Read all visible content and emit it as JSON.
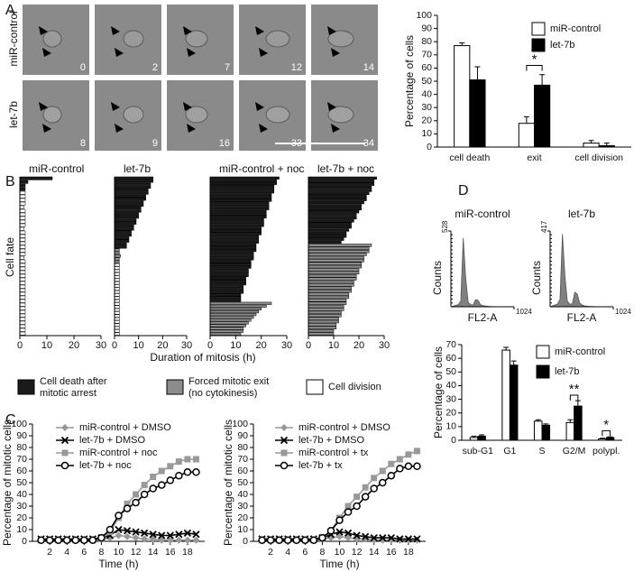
{
  "panel_labels": [
    "A",
    "B",
    "C",
    "D"
  ],
  "panel_a_images": {
    "rows": [
      {
        "label": "miR-control",
        "frames": [
          0,
          2,
          7,
          12,
          14
        ]
      },
      {
        "label": "let-7b",
        "frames": [
          8,
          9,
          16,
          33,
          34
        ]
      }
    ]
  },
  "panel_b": {
    "xlabel": "Duration of mitosis (h)",
    "ylabel": "Cell fate"
  },
  "fate_legend": [
    {
      "lines": [
        "Cell death after",
        "mitotic arrest"
      ],
      "color": "#1a1a1a"
    },
    {
      "lines": [
        "Forced mitotic exit",
        "(no cytokinesis)"
      ],
      "color": "#8c8c8c"
    },
    {
      "lines": [
        "Cell division"
      ],
      "color": "#ffffff"
    }
  ],
  "chart_data": [
    {
      "type": "bar",
      "ylabel": "Percentage of cells",
      "categories": [
        "cell death",
        "exit",
        "cell division"
      ],
      "ylim": [
        0,
        100
      ],
      "yticks": [
        0,
        10,
        20,
        30,
        40,
        50,
        60,
        70,
        80,
        90,
        100
      ],
      "series": [
        {
          "name": "miR-control",
          "color": "#ffffff",
          "values": [
            77,
            18,
            3
          ],
          "errors": [
            2,
            5,
            2
          ]
        },
        {
          "name": "let-7b",
          "color": "#000000",
          "values": [
            51,
            47,
            1
          ],
          "errors": [
            10,
            8,
            2
          ]
        }
      ],
      "annotations": [
        "*"
      ]
    },
    {
      "type": "fate",
      "title": "miR-control",
      "xlim": [
        0,
        30
      ],
      "xticks": [
        0,
        10,
        20,
        30
      ],
      "series": [
        {
          "color": "#1a1a1a",
          "values": [
            12,
            3,
            2,
            2
          ]
        },
        {
          "color": "#8c8c8c",
          "values": []
        },
        {
          "color": "#ffffff",
          "values": [
            2,
            2,
            2,
            2,
            1.5,
            2,
            2,
            2,
            2,
            2,
            1.5,
            2,
            2,
            2,
            2,
            2,
            2,
            2,
            1.5,
            2,
            2,
            2,
            2,
            2,
            2,
            2,
            2,
            2,
            2,
            2,
            2,
            2,
            2,
            2,
            2,
            2,
            2,
            2,
            2,
            2
          ]
        }
      ]
    },
    {
      "type": "fate",
      "title": "let-7b",
      "xlim": [
        0,
        30
      ],
      "xticks": [
        0,
        10,
        20,
        30
      ],
      "series": [
        {
          "color": "#1a1a1a",
          "values": [
            16,
            16,
            15,
            15,
            14,
            14,
            13,
            13,
            12,
            12,
            11,
            11,
            10,
            10,
            9,
            9,
            8,
            8,
            7,
            7,
            6,
            6,
            5,
            5
          ]
        },
        {
          "color": "#8c8c8c",
          "values": [
            2,
            2,
            2.5,
            2,
            2
          ]
        },
        {
          "color": "#ffffff",
          "values": [
            2,
            2,
            2,
            2,
            2,
            2,
            2,
            2,
            2,
            2,
            2,
            2,
            2,
            2,
            2,
            2,
            2,
            2,
            2,
            2,
            2,
            2,
            2,
            2
          ]
        }
      ]
    },
    {
      "type": "fate",
      "title": "miR-control + noc",
      "xlim": [
        0,
        30
      ],
      "xticks": [
        0,
        10,
        20,
        30
      ],
      "series": [
        {
          "color": "#1a1a1a",
          "values": [
            27,
            26,
            26,
            25,
            25,
            25,
            24,
            24,
            24,
            23,
            23,
            23,
            22,
            22,
            22,
            21,
            21,
            21,
            20,
            20,
            20,
            19,
            19,
            19,
            18,
            18,
            18,
            17,
            17,
            17,
            16,
            16,
            16,
            15,
            15,
            15,
            14,
            14,
            14,
            13,
            13,
            13,
            12,
            12,
            12
          ]
        },
        {
          "color": "#8c8c8c",
          "values": [
            24,
            22,
            20,
            19,
            18,
            17,
            16,
            15,
            14,
            13,
            13,
            12
          ]
        },
        {
          "color": "#ffffff",
          "values": []
        }
      ]
    },
    {
      "type": "fate",
      "title": "let-7b + noc",
      "xlim": [
        0,
        30
      ],
      "xticks": [
        0,
        10,
        20,
        30
      ],
      "series": [
        {
          "color": "#1a1a1a",
          "values": [
            27,
            26,
            26,
            25,
            25,
            24,
            23,
            23,
            22,
            21,
            21,
            20,
            19,
            19,
            18,
            17,
            17,
            16,
            15,
            15,
            14,
            13
          ]
        },
        {
          "color": "#8c8c8c",
          "values": [
            25,
            24,
            24,
            23,
            22,
            22,
            21,
            21,
            20,
            20,
            19,
            19,
            18,
            18,
            17,
            17,
            16,
            16,
            15,
            15,
            14,
            14,
            13,
            13,
            12,
            12,
            11,
            11,
            10,
            10
          ]
        },
        {
          "color": "#ffffff",
          "values": []
        }
      ]
    },
    {
      "type": "line",
      "xlabel": "Time (h)",
      "ylabel": "Percentage of mitotic cells",
      "xlim": [
        0,
        20
      ],
      "ylim": [
        0,
        100
      ],
      "xticks": [
        2,
        4,
        6,
        8,
        10,
        12,
        14,
        16,
        18
      ],
      "yticks": [
        0,
        10,
        20,
        30,
        40,
        50,
        60,
        70,
        80,
        90,
        100
      ],
      "x": [
        1,
        2,
        3,
        4,
        5,
        6,
        7,
        8,
        9,
        10,
        11,
        12,
        13,
        14,
        15,
        16,
        17,
        18,
        19
      ],
      "series": [
        {
          "name": "miR-control + DMSO",
          "color": "#999999",
          "marker": "diamond",
          "values": [
            1,
            1,
            1,
            1,
            1,
            1,
            1,
            2,
            3,
            5,
            4,
            3,
            2,
            2,
            1,
            1,
            1,
            1,
            1
          ]
        },
        {
          "name": "let-7b + DMSO",
          "color": "#000000",
          "marker": "x",
          "values": [
            2,
            2,
            2,
            2,
            2,
            2,
            2,
            3,
            5,
            10,
            9,
            8,
            7,
            6,
            5,
            5,
            6,
            7,
            6
          ]
        },
        {
          "name": "miR-control + noc",
          "color": "#999999",
          "marker": "square",
          "values": [
            1,
            1,
            1,
            1,
            1,
            1,
            1,
            2,
            8,
            20,
            32,
            40,
            48,
            55,
            60,
            64,
            68,
            70,
            70
          ]
        },
        {
          "name": "let-7b + noc",
          "color": "#000000",
          "marker": "circle",
          "values": [
            1,
            1,
            1,
            1,
            1,
            1,
            1,
            3,
            10,
            22,
            28,
            33,
            40,
            45,
            48,
            52,
            56,
            59,
            59
          ]
        }
      ]
    },
    {
      "type": "line",
      "xlabel": "Time (h)",
      "ylabel": "Percentage of mitotic cells",
      "xlim": [
        0,
        20
      ],
      "ylim": [
        0,
        100
      ],
      "xticks": [
        2,
        4,
        6,
        8,
        10,
        12,
        14,
        16,
        18
      ],
      "yticks": [
        0,
        10,
        20,
        30,
        40,
        50,
        60,
        70,
        80,
        90,
        100
      ],
      "x": [
        1,
        2,
        3,
        4,
        5,
        6,
        7,
        8,
        9,
        10,
        11,
        12,
        13,
        14,
        15,
        16,
        17,
        18,
        19
      ],
      "series": [
        {
          "name": "miR-control + DMSO",
          "color": "#999999",
          "marker": "diamond",
          "values": [
            1,
            1,
            1,
            1,
            1,
            1,
            1,
            2,
            3,
            4,
            3,
            2,
            2,
            1,
            1,
            1,
            1,
            1,
            1
          ]
        },
        {
          "name": "let-7b + DMSO",
          "color": "#000000",
          "marker": "x",
          "values": [
            2,
            2,
            2,
            2,
            2,
            2,
            2,
            3,
            6,
            8,
            7,
            5,
            4,
            3,
            3,
            3,
            2,
            2,
            2
          ]
        },
        {
          "name": "miR-control + tx",
          "color": "#999999",
          "marker": "square",
          "values": [
            1,
            1,
            1,
            1,
            1,
            1,
            1,
            2,
            9,
            20,
            30,
            38,
            46,
            54,
            60,
            66,
            70,
            74,
            77
          ]
        },
        {
          "name": "let-7b + tx",
          "color": "#000000",
          "marker": "circle",
          "values": [
            1,
            1,
            1,
            1,
            1,
            1,
            1,
            3,
            9,
            18,
            25,
            30,
            38,
            45,
            50,
            56,
            62,
            64,
            64
          ]
        }
      ]
    },
    {
      "type": "area",
      "title": "miR-control",
      "xlabel": "FL2-A",
      "ylabel": "Counts",
      "xlim": [
        0,
        1024
      ],
      "ylim": [
        0,
        528
      ],
      "xticks": [
        1024
      ],
      "yticks": [
        528
      ],
      "color": "#808080",
      "x": [
        0,
        40,
        80,
        120,
        160,
        200,
        240,
        280,
        320,
        360,
        400,
        440,
        480,
        520,
        560,
        600,
        640,
        680,
        720,
        760,
        800,
        840,
        880,
        920,
        960,
        1000
      ],
      "values": [
        0,
        5,
        10,
        15,
        40,
        480,
        200,
        30,
        15,
        12,
        50,
        45,
        15,
        8,
        5,
        3,
        2,
        1,
        1,
        0,
        0,
        0,
        0,
        0,
        0,
        0
      ]
    },
    {
      "type": "area",
      "title": "let-7b",
      "xlabel": "FL2-A",
      "ylabel": "Counts",
      "xlim": [
        0,
        1024
      ],
      "ylim": [
        0,
        417
      ],
      "xticks": [
        1024
      ],
      "yticks": [
        417
      ],
      "color": "#808080",
      "x": [
        0,
        40,
        80,
        120,
        160,
        200,
        240,
        280,
        320,
        360,
        400,
        440,
        480,
        520,
        560,
        600,
        640,
        680,
        720,
        760,
        800,
        840,
        880,
        920,
        960,
        1000
      ],
      "values": [
        0,
        5,
        10,
        15,
        40,
        400,
        170,
        30,
        15,
        15,
        80,
        70,
        20,
        10,
        5,
        3,
        2,
        1,
        1,
        0,
        0,
        0,
        0,
        0,
        0,
        0
      ]
    },
    {
      "type": "bar",
      "ylabel": "Percentage of cells",
      "categories": [
        "sub-G1",
        "G1",
        "S",
        "G2/M",
        "polypl."
      ],
      "ylim": [
        0,
        70
      ],
      "yticks": [
        0,
        10,
        20,
        30,
        40,
        50,
        60,
        70
      ],
      "series": [
        {
          "name": "miR-control",
          "color": "#ffffff",
          "values": [
            2,
            66,
            14,
            13,
            1
          ],
          "errors": [
            1,
            2,
            1,
            2,
            0.5
          ]
        },
        {
          "name": "let-7b",
          "color": "#000000",
          "values": [
            3,
            55,
            11,
            25,
            2
          ],
          "errors": [
            1,
            3,
            1,
            4,
            0.5
          ]
        }
      ],
      "annotations": [
        "**",
        "*"
      ]
    }
  ]
}
